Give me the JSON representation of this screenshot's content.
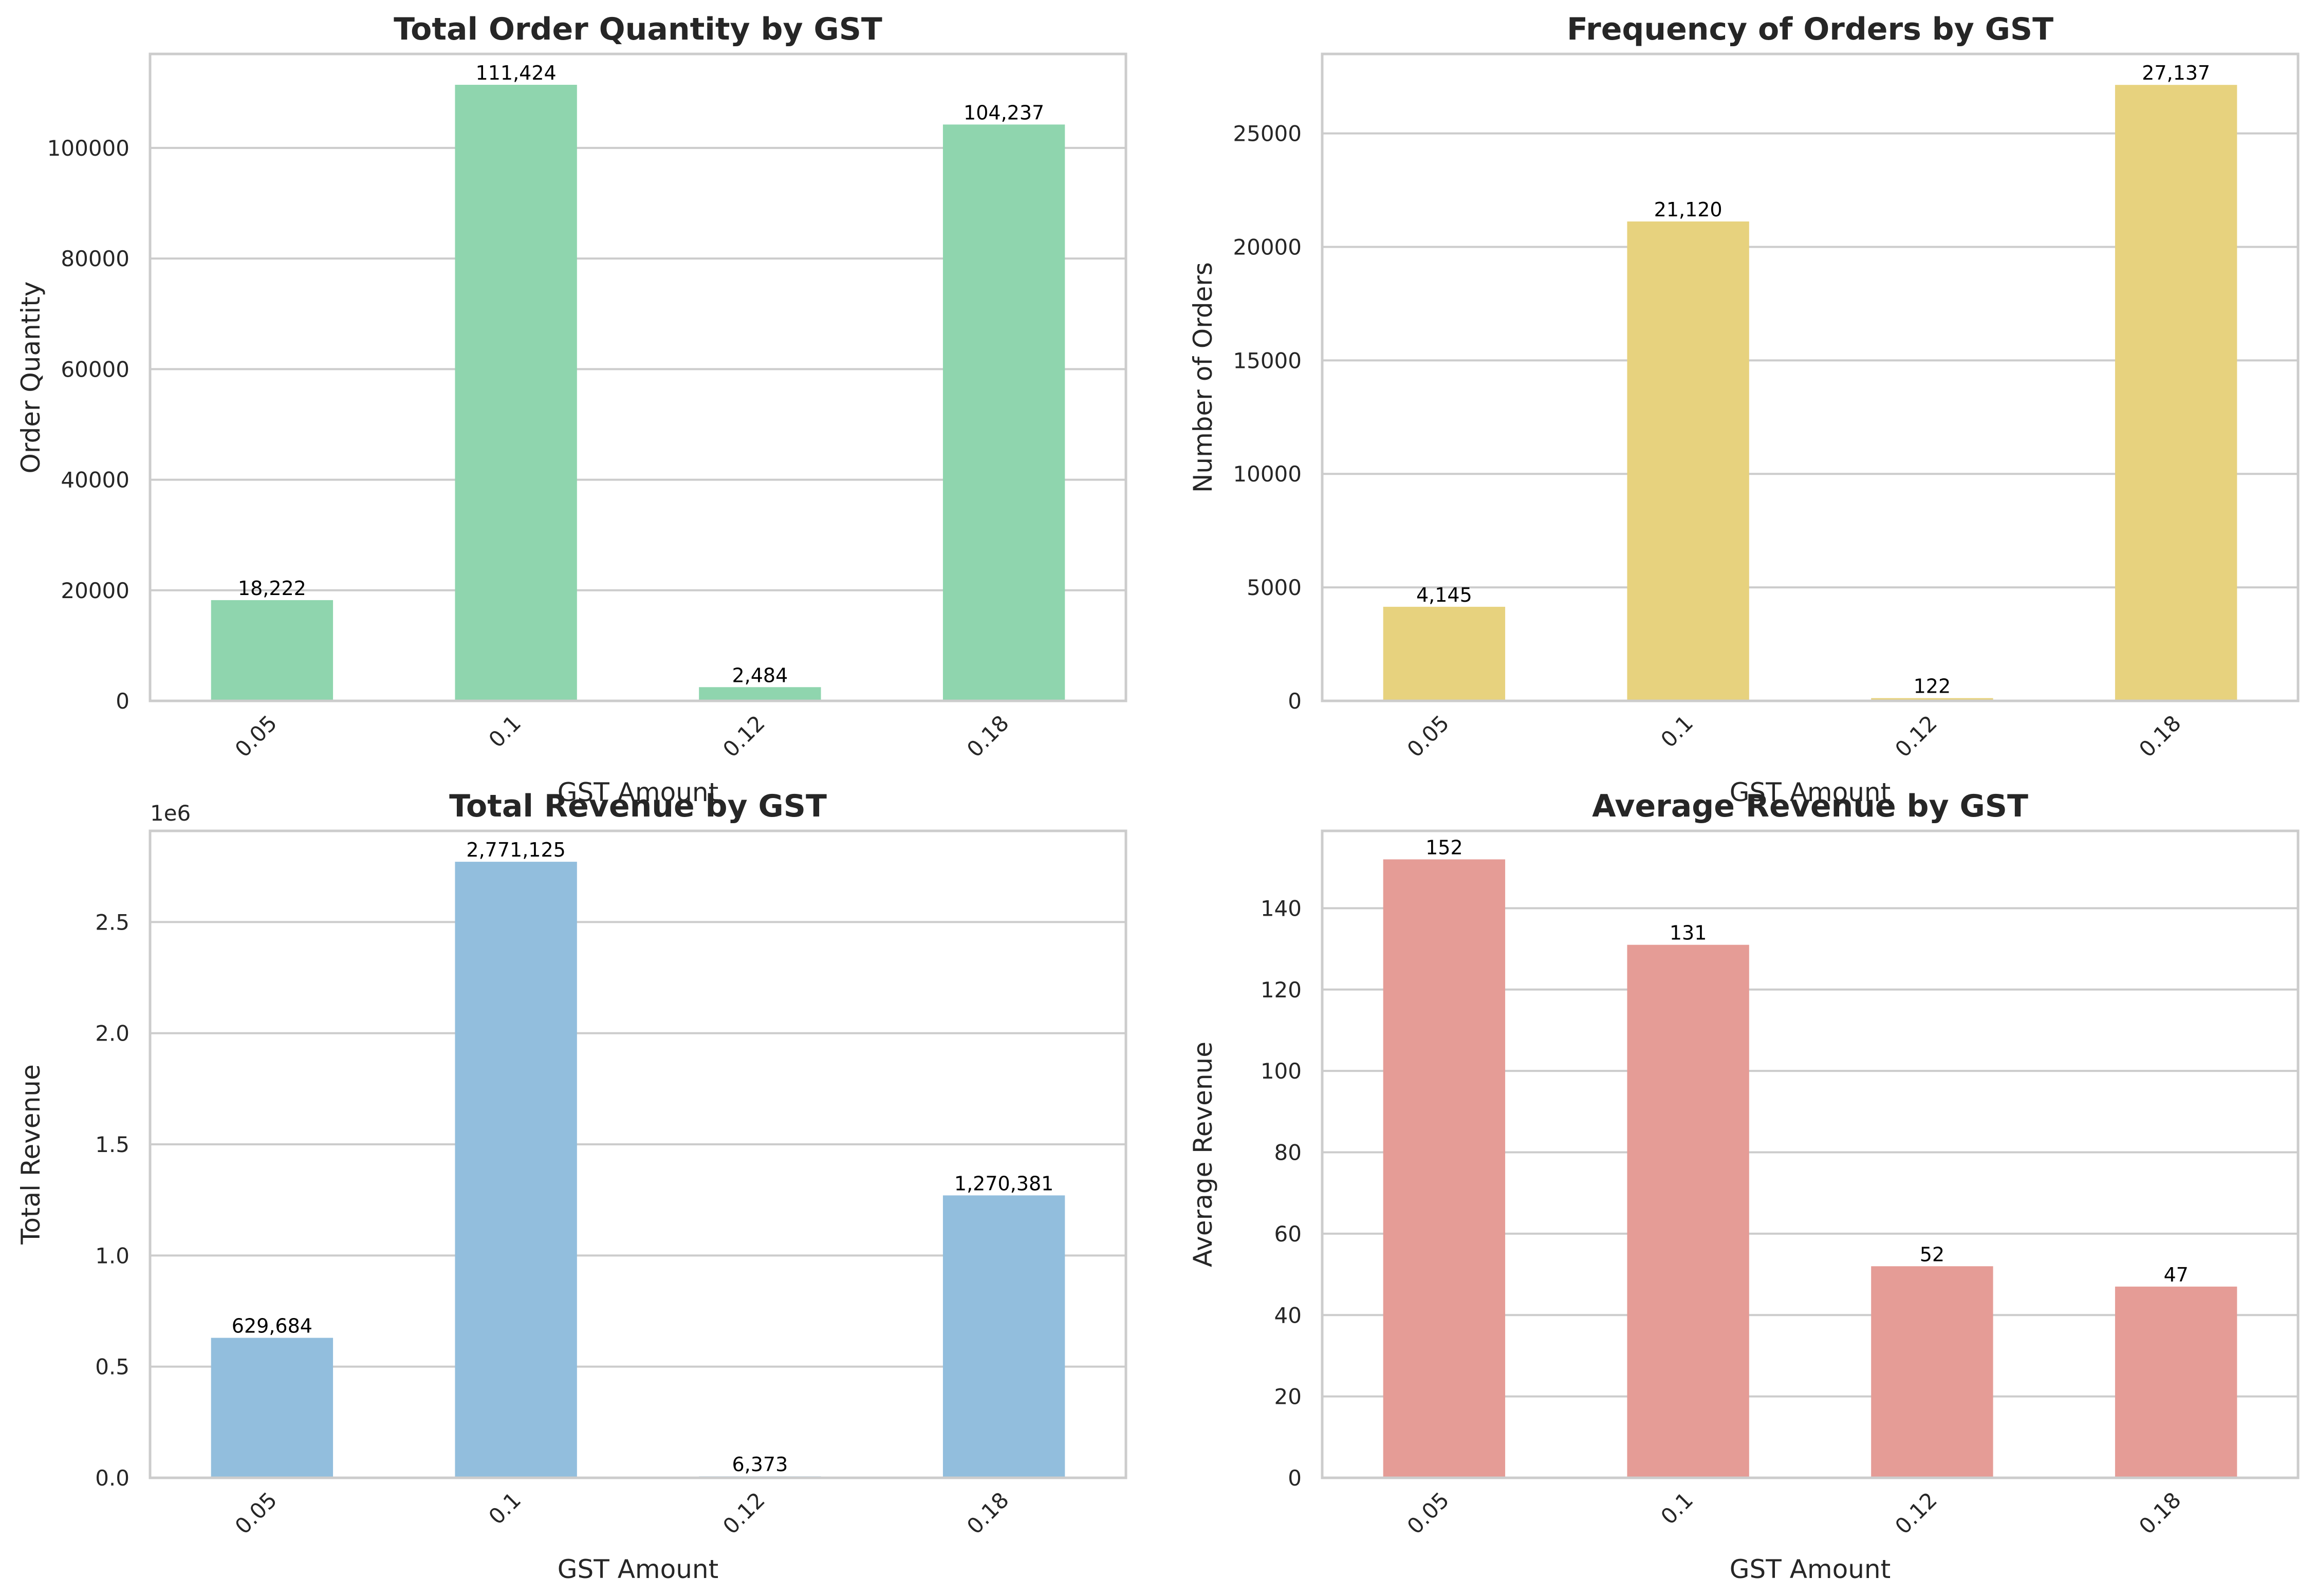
{
  "chart_data": [
    {
      "type": "bar",
      "title": "Total Order Quantity by GST",
      "xlabel": "GST Amount",
      "ylabel": "Order Quantity",
      "categories": [
        "0.05",
        "0.1",
        "0.12",
        "0.18"
      ],
      "values": [
        18222,
        111424,
        2484,
        104237
      ],
      "value_labels": [
        "18,222",
        "111,424",
        "2,484",
        "104,237"
      ],
      "ylim": [
        0,
        117000
      ],
      "yticks": [
        0,
        20000,
        40000,
        60000,
        80000,
        100000
      ],
      "ytick_labels": [
        "0",
        "20000",
        "40000",
        "60000",
        "80000",
        "100000"
      ],
      "y_offset_label": "",
      "color": "#8fd5ae",
      "grid": true
    },
    {
      "type": "bar",
      "title": "Frequency of Orders by GST",
      "xlabel": "GST Amount",
      "ylabel": "Number of Orders",
      "categories": [
        "0.05",
        "0.1",
        "0.12",
        "0.18"
      ],
      "values": [
        4145,
        21120,
        122,
        27137
      ],
      "value_labels": [
        "4,145",
        "21,120",
        "122",
        "27,137"
      ],
      "ylim": [
        0,
        28500
      ],
      "yticks": [
        0,
        5000,
        10000,
        15000,
        20000,
        25000
      ],
      "ytick_labels": [
        "0",
        "5000",
        "10000",
        "15000",
        "20000",
        "25000"
      ],
      "y_offset_label": "",
      "color": "#e7d27e",
      "grid": true
    },
    {
      "type": "bar",
      "title": "Total Revenue by GST",
      "xlabel": "GST Amount",
      "ylabel": "Total Revenue",
      "categories": [
        "0.05",
        "0.1",
        "0.12",
        "0.18"
      ],
      "values": [
        629684,
        2771125,
        6373,
        1270381
      ],
      "value_labels": [
        "629,684",
        "2,771,125",
        "6,373",
        "1,270,381"
      ],
      "ylim": [
        0,
        2910000
      ],
      "yticks": [
        0,
        500000,
        1000000,
        1500000,
        2000000,
        2500000
      ],
      "ytick_labels": [
        "0.0",
        "0.5",
        "1.0",
        "1.5",
        "2.0",
        "2.5"
      ],
      "y_offset_label": "1e6",
      "color": "#92bedd",
      "grid": true
    },
    {
      "type": "bar",
      "title": "Average Revenue by GST",
      "xlabel": "GST Amount",
      "ylabel": "Average Revenue",
      "categories": [
        "0.05",
        "0.1",
        "0.12",
        "0.18"
      ],
      "values": [
        152,
        131,
        52,
        47
      ],
      "value_labels": [
        "152",
        "131",
        "52",
        "47"
      ],
      "ylim": [
        0,
        159
      ],
      "yticks": [
        0,
        20,
        40,
        60,
        80,
        100,
        120,
        140
      ],
      "ytick_labels": [
        "0",
        "20",
        "40",
        "60",
        "80",
        "100",
        "120",
        "140"
      ],
      "y_offset_label": "",
      "color": "#e59c96",
      "grid": true
    }
  ]
}
